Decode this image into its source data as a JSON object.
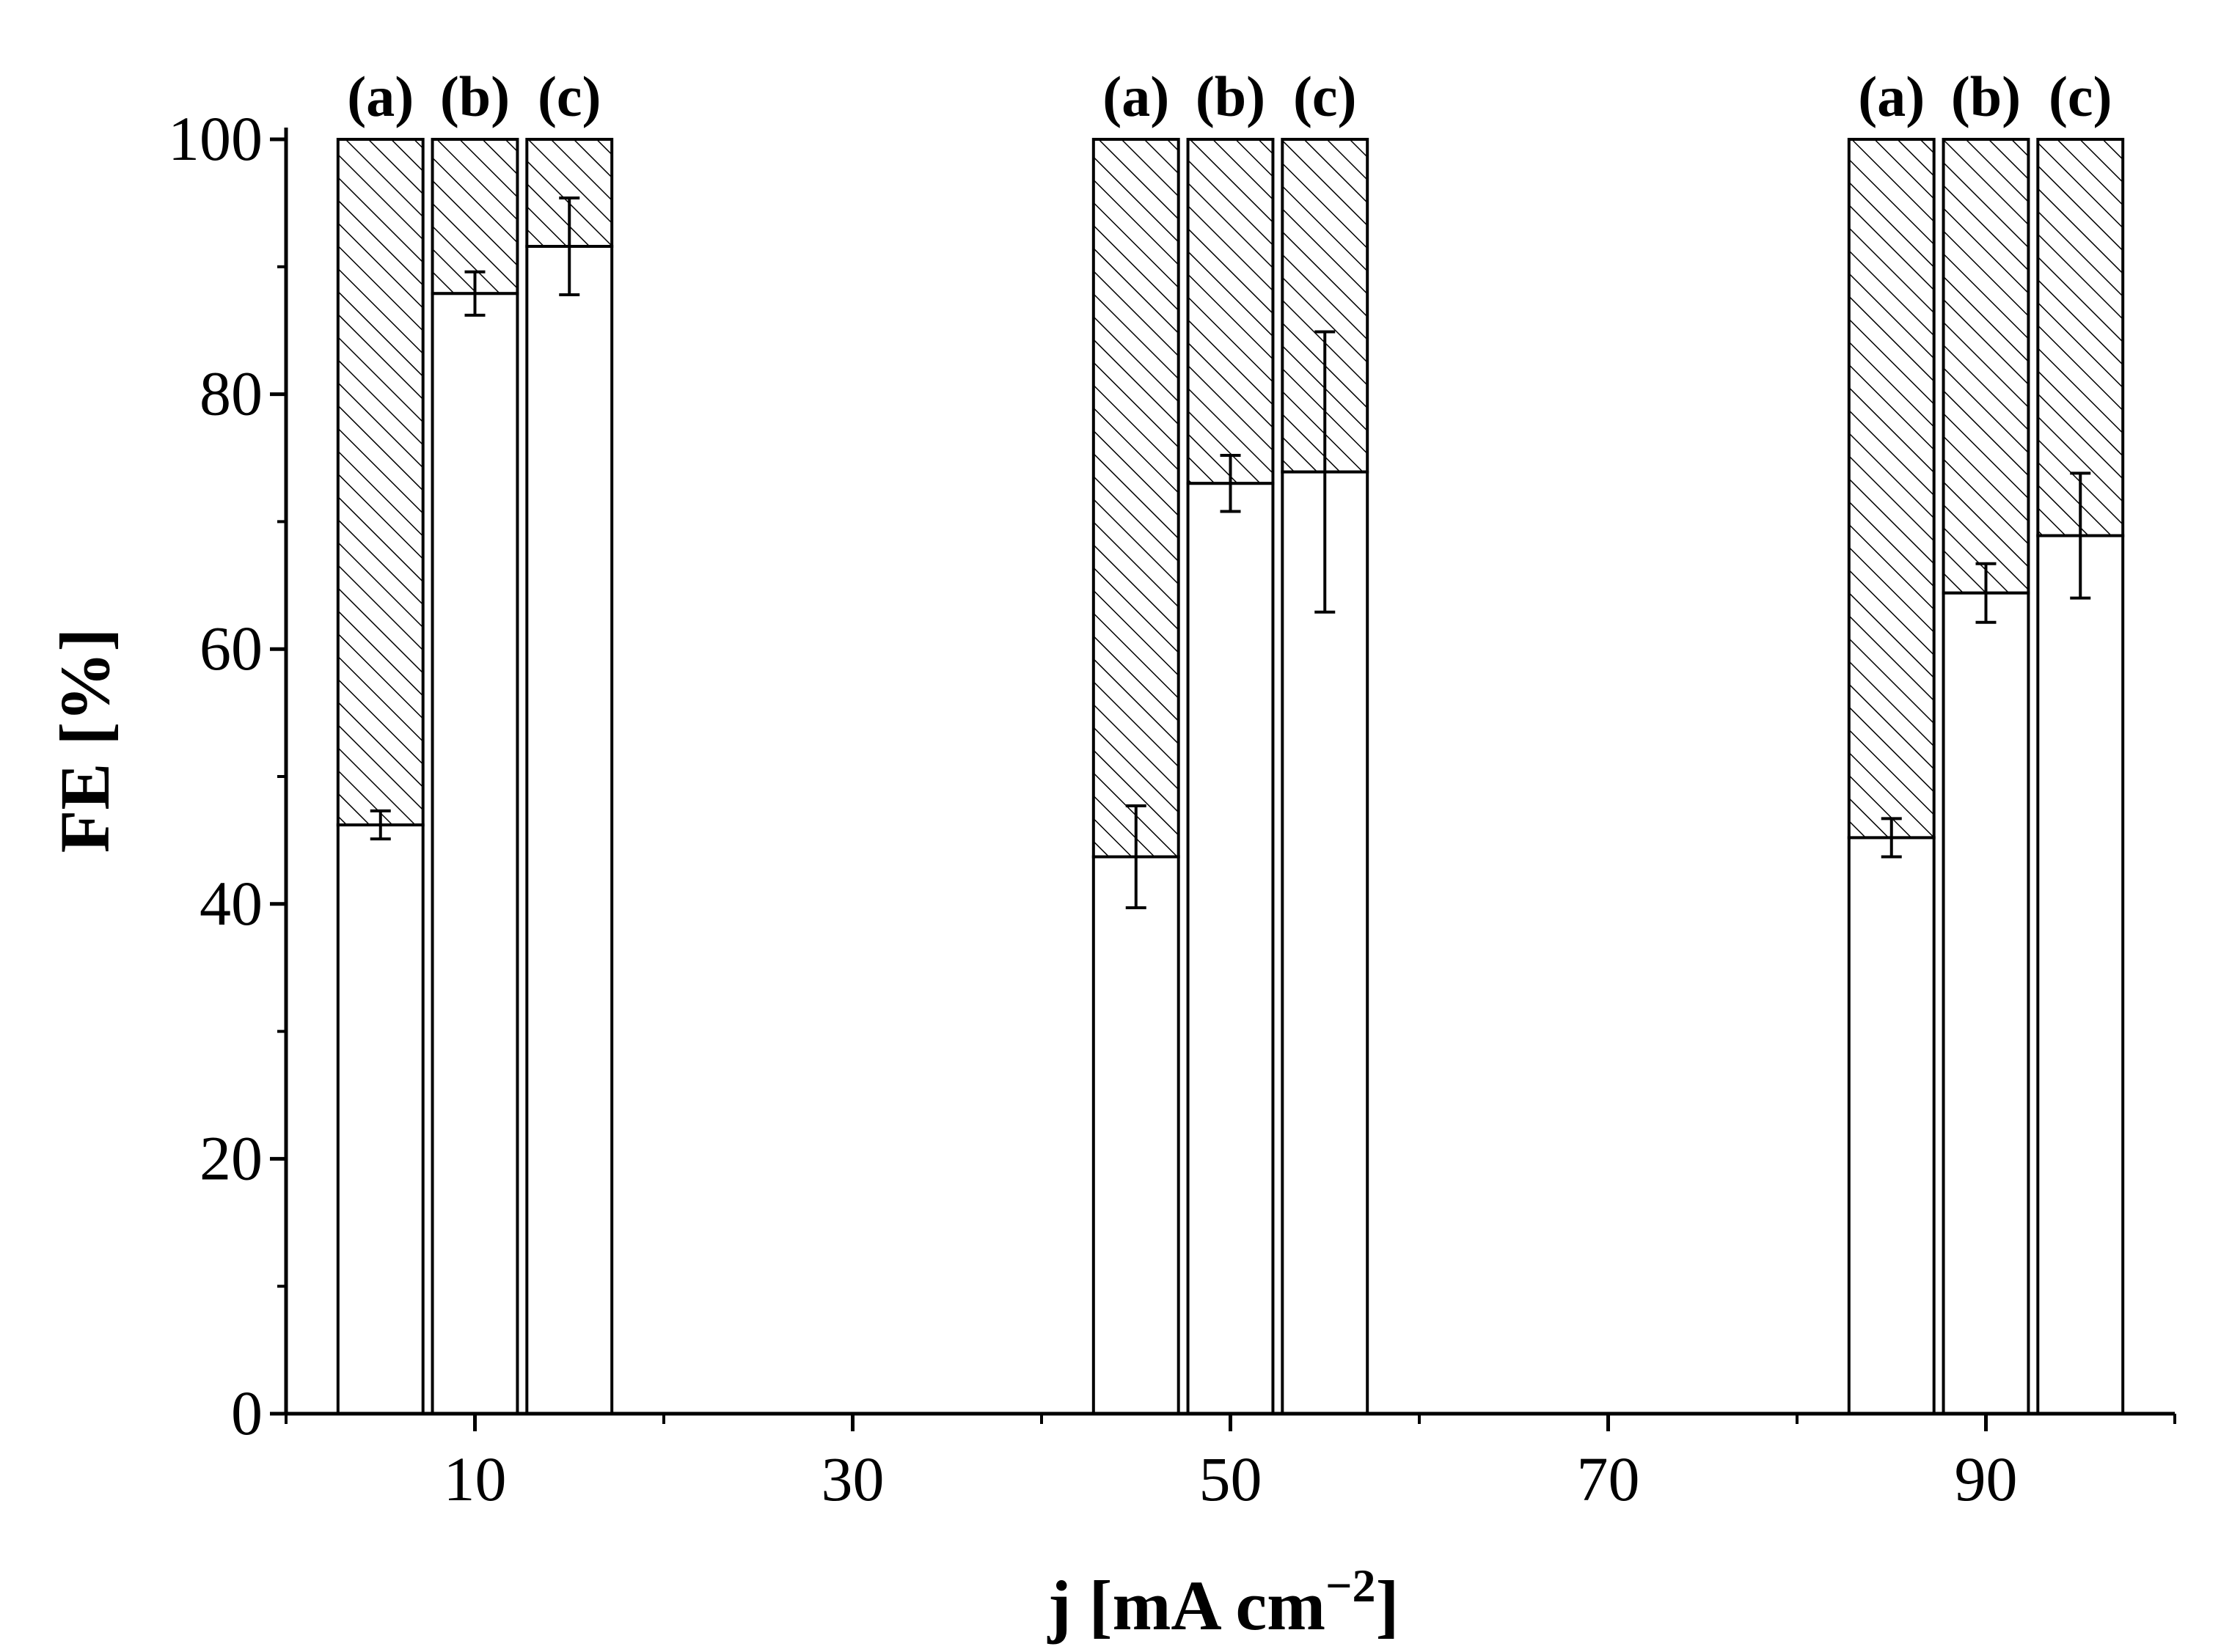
{
  "chart_data": {
    "type": "bar",
    "stacked": true,
    "xlabel": "j [mA cm",
    "xlabel_sup": "−2",
    "xlabel_close": "]",
    "ylabel": "FE [%]",
    "xlim": [
      0,
      100
    ],
    "ylim": [
      0,
      100
    ],
    "x_ticks": [
      "10",
      "30",
      "50",
      "70",
      "90"
    ],
    "y_ticks": [
      "0",
      "20",
      "40",
      "60",
      "80",
      "100"
    ],
    "grid": false,
    "legend": "none",
    "bar_width": 4.5,
    "colors": {
      "bar_fill": "#ffffff",
      "stroke": "#000000",
      "hatch": "#000000"
    },
    "groups": [
      {
        "j": "10",
        "bars": [
          {
            "label": "(a)",
            "x": 5,
            "value": 46.2,
            "error": 1.1,
            "total": 100
          },
          {
            "label": "(b)",
            "x": 10,
            "value": 87.9,
            "error": 1.7,
            "total": 100
          },
          {
            "label": "(c)",
            "x": 15,
            "value": 91.6,
            "error": 3.8,
            "total": 100
          }
        ]
      },
      {
        "j": "50",
        "bars": [
          {
            "label": "(a)",
            "x": 45,
            "value": 43.7,
            "error": 4.0,
            "total": 100
          },
          {
            "label": "(b)",
            "x": 50,
            "value": 73.0,
            "error": 2.2,
            "total": 100
          },
          {
            "label": "(c)",
            "x": 55,
            "value": 73.9,
            "error": 11.0,
            "total": 100
          }
        ]
      },
      {
        "j": "90",
        "bars": [
          {
            "label": "(a)",
            "x": 85,
            "value": 45.2,
            "error": 1.5,
            "total": 100
          },
          {
            "label": "(b)",
            "x": 90,
            "value": 64.4,
            "error": 2.3,
            "total": 100
          },
          {
            "label": "(c)",
            "x": 95,
            "value": 68.9,
            "error": 4.9,
            "total": 100
          }
        ]
      }
    ]
  }
}
